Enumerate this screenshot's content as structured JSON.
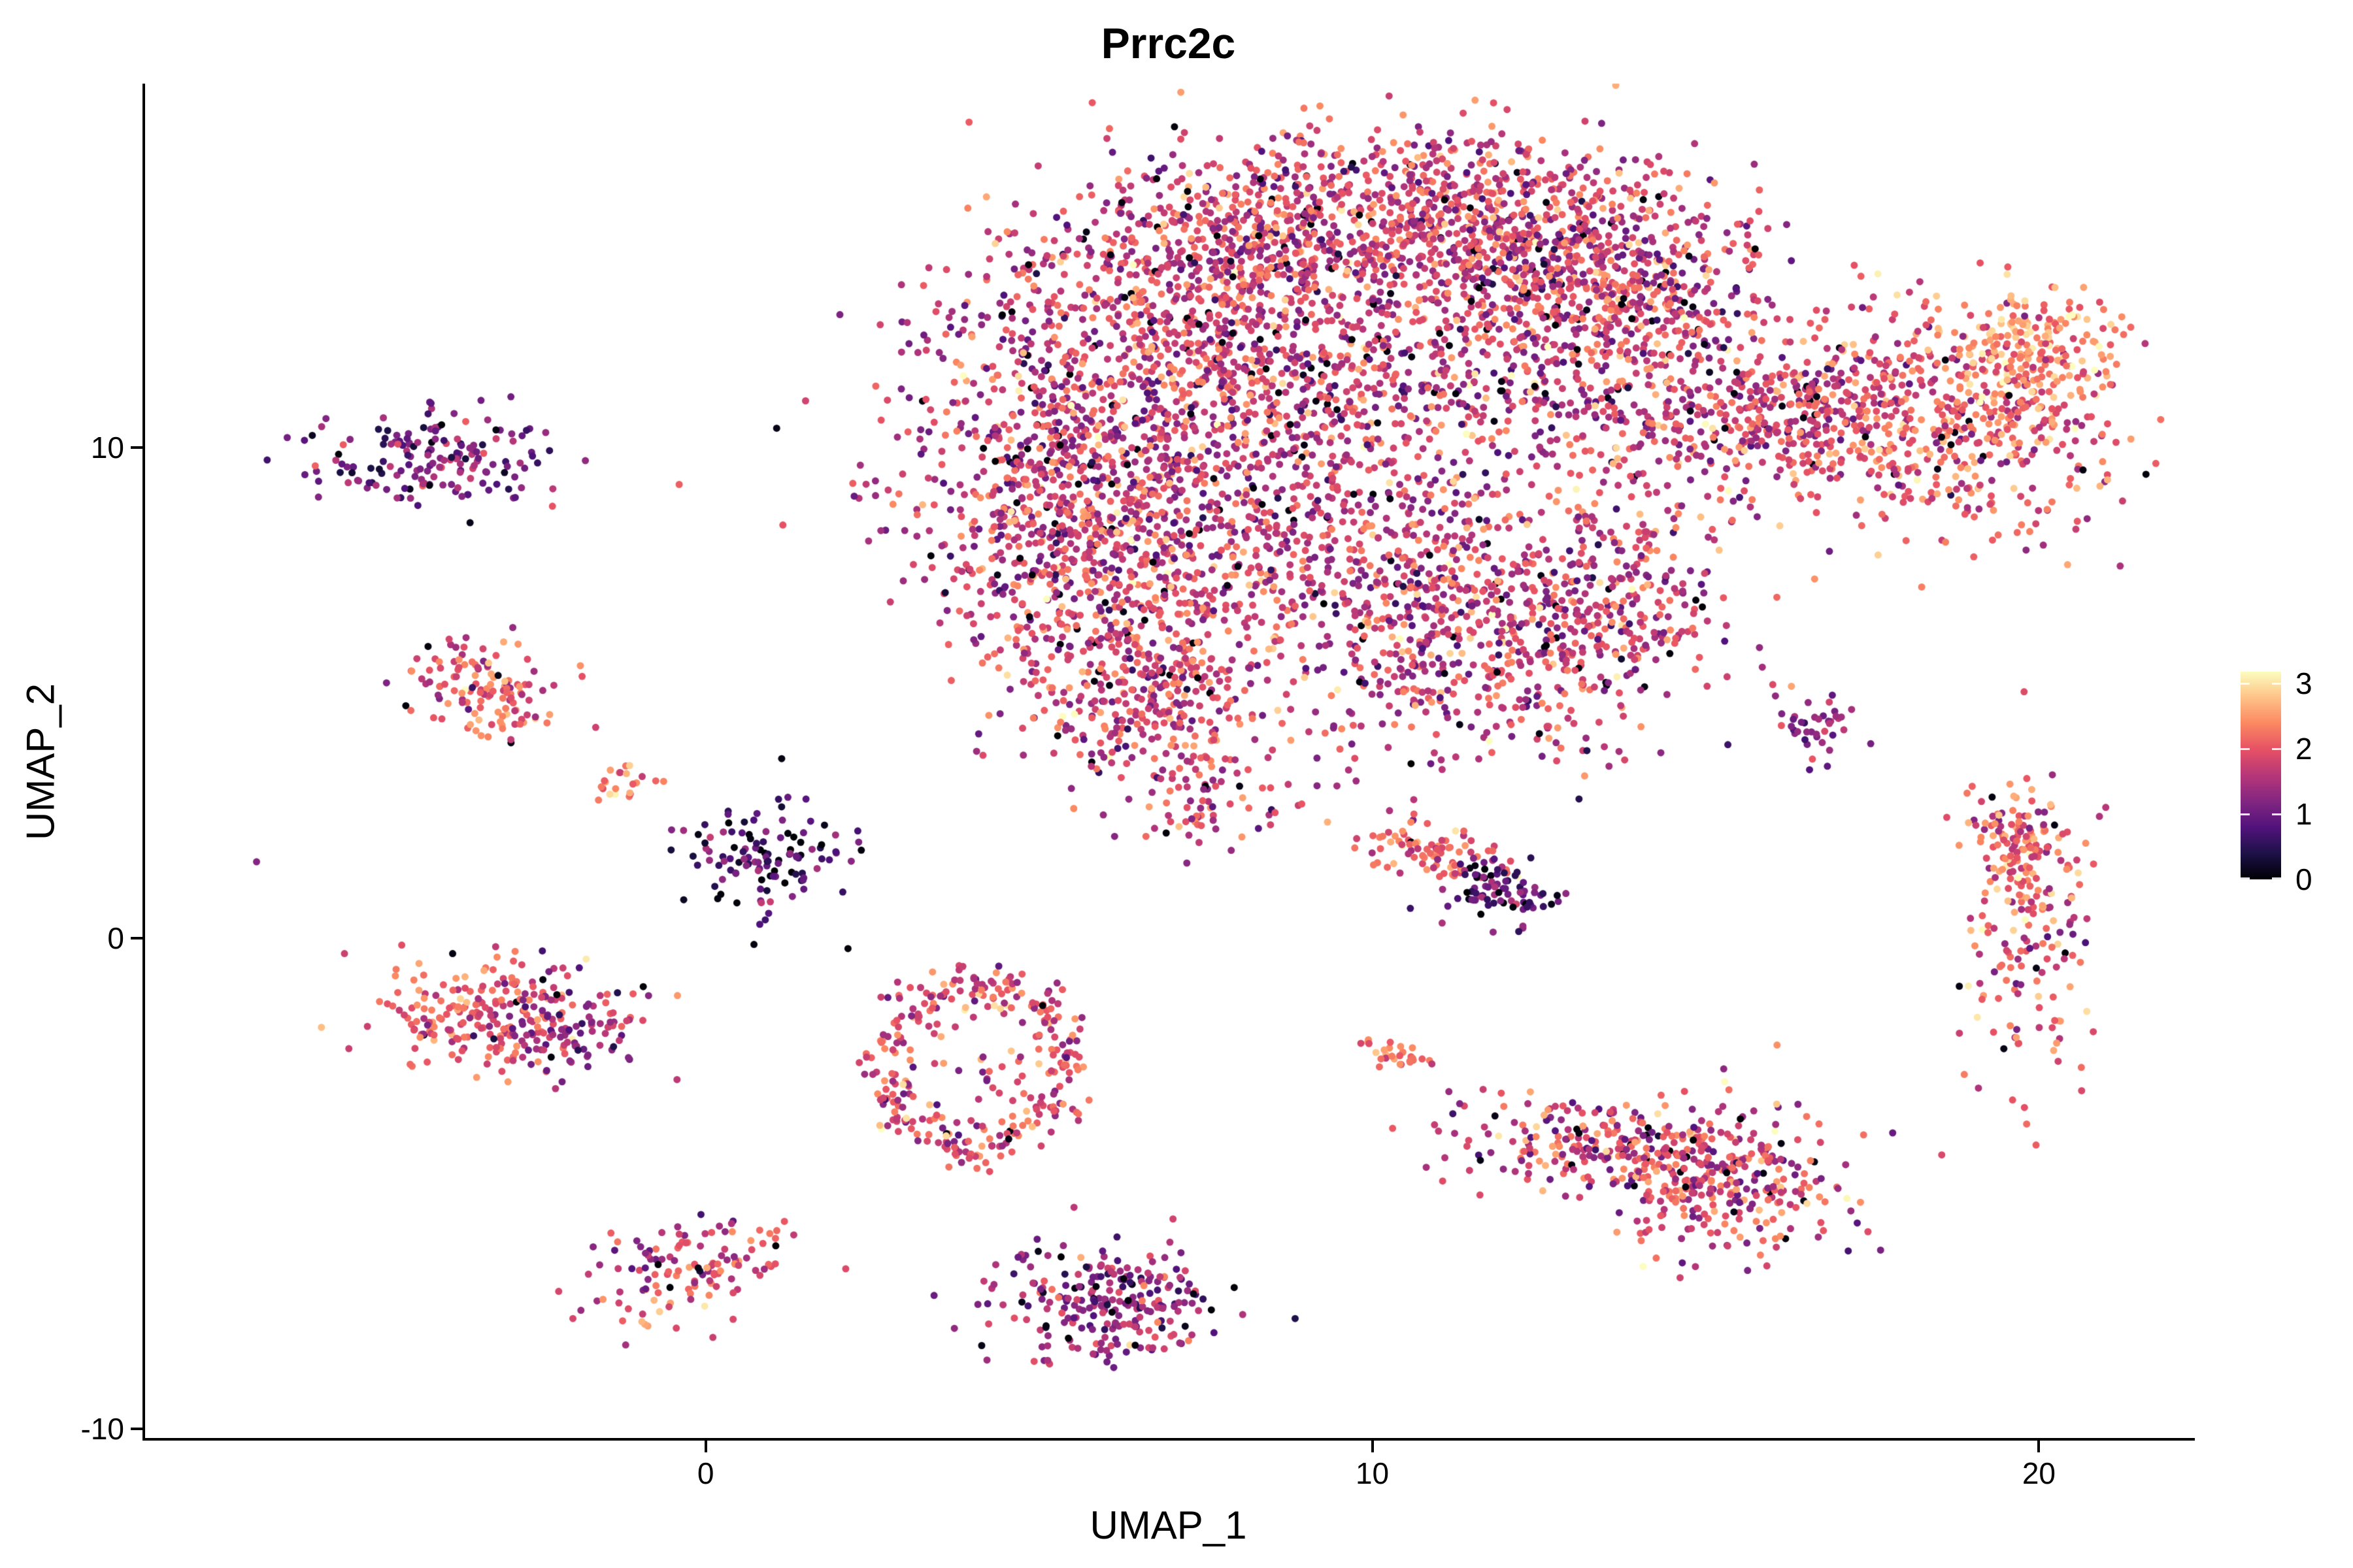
{
  "chart_data": {
    "type": "scatter",
    "title": "Prrc2c",
    "xlabel": "UMAP_1",
    "ylabel": "UMAP_2",
    "x_ticks": [
      0,
      10,
      20
    ],
    "y_ticks": [
      -10,
      0,
      10
    ],
    "xlim": [
      -8.43,
      22.31
    ],
    "ylim": [
      -10.21,
      17.39
    ],
    "grid": false,
    "point_radius_px": 5.5,
    "colorbar": {
      "position": "right",
      "ticks": [
        0,
        1,
        2,
        3
      ],
      "value_max": 3.18,
      "colormap": "magma",
      "stops": [
        "#000004",
        "#1d1147",
        "#51127c",
        "#822681",
        "#b63679",
        "#e65164",
        "#fb8861",
        "#fec287",
        "#fcfdbf"
      ]
    },
    "clusters": [
      {
        "cx": 7.6,
        "cy": 13.6,
        "rx": 1.25,
        "ry": 1.05,
        "rot": 0,
        "n": 340,
        "vm": 1.8,
        "vs": 0.5,
        "z": 0.04
      },
      {
        "cx": 9.3,
        "cy": 14.7,
        "rx": 1.5,
        "ry": 0.85,
        "rot": 0,
        "n": 400,
        "vm": 1.8,
        "vs": 0.5,
        "z": 0.04
      },
      {
        "cx": 11.5,
        "cy": 14.6,
        "rx": 1.4,
        "ry": 0.95,
        "rot": 0,
        "n": 400,
        "vm": 1.75,
        "vs": 0.55,
        "z": 0.04
      },
      {
        "cx": 13.2,
        "cy": 13.7,
        "rx": 1.15,
        "ry": 1.15,
        "rot": 0,
        "n": 330,
        "vm": 1.8,
        "vs": 0.55,
        "z": 0.05
      },
      {
        "cx": 6.0,
        "cy": 11.2,
        "rx": 1.55,
        "ry": 1.8,
        "rot": 0,
        "n": 680,
        "vm": 1.7,
        "vs": 0.55,
        "z": 0.04
      },
      {
        "cx": 5.2,
        "cy": 8.7,
        "rx": 1.15,
        "ry": 1.4,
        "rot": 0,
        "n": 430,
        "vm": 1.7,
        "vs": 0.55,
        "z": 0.04
      },
      {
        "cx": 6.3,
        "cy": 6.3,
        "rx": 1.15,
        "ry": 1.3,
        "rot": 0,
        "n": 380,
        "vm": 1.75,
        "vs": 0.5,
        "z": 0.03
      },
      {
        "cx": 6.7,
        "cy": 4.6,
        "rx": 0.85,
        "ry": 0.85,
        "rot": 0,
        "n": 190,
        "vm": 1.8,
        "vs": 0.5,
        "z": 0.02
      },
      {
        "cx": 7.6,
        "cy": 2.9,
        "rx": 0.9,
        "ry": 0.55,
        "rot": 0,
        "n": 70,
        "vm": 1.7,
        "vs": 0.5,
        "z": 0.04
      },
      {
        "cx": 8.9,
        "cy": 11.9,
        "rx": 1.5,
        "ry": 1.15,
        "rot": 0,
        "n": 300,
        "vm": 1.7,
        "vs": 0.55,
        "z": 0.05
      },
      {
        "cx": 8.3,
        "cy": 9.4,
        "rx": 1.4,
        "ry": 1.9,
        "rot": 0,
        "n": 430,
        "vm": 1.7,
        "vs": 0.55,
        "z": 0.04
      },
      {
        "cx": 12.6,
        "cy": 11.9,
        "rx": 1.55,
        "ry": 1.5,
        "rot": 0,
        "n": 520,
        "vm": 1.75,
        "vs": 0.55,
        "z": 0.05
      },
      {
        "cx": 13.9,
        "cy": 13.1,
        "rx": 1.0,
        "ry": 0.95,
        "rot": 0,
        "n": 200,
        "vm": 1.8,
        "vs": 0.5,
        "z": 0.03
      },
      {
        "cx": 10.6,
        "cy": 6.4,
        "rx": 1.25,
        "ry": 1.45,
        "rot": 0,
        "n": 330,
        "vm": 1.7,
        "vs": 0.55,
        "z": 0.04
      },
      {
        "cx": 12.3,
        "cy": 5.9,
        "rx": 1.25,
        "ry": 1.15,
        "rot": 0,
        "n": 290,
        "vm": 1.7,
        "vs": 0.55,
        "z": 0.04
      },
      {
        "cx": 13.6,
        "cy": 7.4,
        "rx": 1.0,
        "ry": 1.2,
        "rot": 0,
        "n": 240,
        "vm": 1.75,
        "vs": 0.5,
        "z": 0.03
      },
      {
        "cx": 10.2,
        "cy": 8.6,
        "rx": 1.8,
        "ry": 1.1,
        "rot": 0,
        "n": 150,
        "vm": 1.65,
        "vs": 0.55,
        "z": 0.05
      },
      {
        "cx": 15.3,
        "cy": 10.5,
        "rx": 1.1,
        "ry": 0.8,
        "rot": 0,
        "n": 140,
        "vm": 1.7,
        "vs": 0.5,
        "z": 0.04
      },
      {
        "cx": 16.5,
        "cy": 10.9,
        "rx": 0.8,
        "ry": 0.7,
        "rot": 0,
        "n": 120,
        "vm": 1.8,
        "vs": 0.5,
        "z": 0.03
      },
      {
        "cx": 18.2,
        "cy": 10.5,
        "rx": 1.5,
        "ry": 1.05,
        "rot": -20,
        "n": 540,
        "vm": 2.0,
        "vs": 0.5,
        "z": 0.02
      },
      {
        "cx": 19.8,
        "cy": 12.2,
        "rx": 0.65,
        "ry": 0.55,
        "rot": 0,
        "n": 150,
        "vm": 2.5,
        "vs": 0.35,
        "z": 0
      },
      {
        "cx": 19.85,
        "cy": 11.2,
        "rx": 0.5,
        "ry": 0.7,
        "rot": 0,
        "n": 90,
        "vm": 2.1,
        "vs": 0.45,
        "z": 0.01
      },
      {
        "cx": -4.15,
        "cy": 9.8,
        "rx": 1.0,
        "ry": 0.5,
        "rot": 0,
        "n": 170,
        "vm": 1.15,
        "vs": 0.45,
        "z": 0.06
      },
      {
        "cx": -3.4,
        "cy": 5.2,
        "rx": 0.6,
        "ry": 0.45,
        "rot": 0,
        "n": 105,
        "vm": 1.95,
        "vs": 0.45,
        "z": 0.02
      },
      {
        "cx": -2.95,
        "cy": 4.55,
        "rx": 0.35,
        "ry": 0.18,
        "rot": -30,
        "n": 22,
        "vm": 2.2,
        "vs": 0.35,
        "z": 0
      },
      {
        "cx": -1.28,
        "cy": 3.2,
        "rx": 0.28,
        "ry": 0.2,
        "rot": -35,
        "n": 22,
        "vm": 2.3,
        "vs": 0.35,
        "z": 0
      },
      {
        "cx": -6.72,
        "cy": 1.58,
        "rx": 0.02,
        "ry": 0.02,
        "rot": 0,
        "n": 1,
        "vm": 1.2,
        "vs": 0,
        "z": 0
      },
      {
        "cx": 1.0,
        "cy": 1.6,
        "rx": 0.6,
        "ry": 0.55,
        "rot": 0,
        "n": 120,
        "vm": 0.8,
        "vs": 0.45,
        "z": 0.12
      },
      {
        "cx": -3.5,
        "cy": -1.5,
        "rx": 0.75,
        "ry": 0.6,
        "rot": 0,
        "n": 180,
        "vm": 2.15,
        "vs": 0.4,
        "z": 0.01
      },
      {
        "cx": -2.2,
        "cy": -1.7,
        "rx": 0.65,
        "ry": 0.5,
        "rot": 0,
        "n": 120,
        "vm": 1.3,
        "vs": 0.4,
        "z": 0.03
      },
      {
        "cx": -1.77,
        "cy": -0.45,
        "rx": 0.02,
        "ry": 0.02,
        "rot": 0,
        "n": 1,
        "vm": 3.05,
        "vs": 0,
        "z": 0
      },
      {
        "type": "ring",
        "cx": 4.1,
        "cy": -2.6,
        "rx": 1.35,
        "ry": 1.6,
        "rw": 0.18,
        "rot": 0,
        "n": 300,
        "vm": 1.9,
        "vs": 0.5,
        "z": 0.02
      },
      {
        "cx": 4.1,
        "cy": -2.6,
        "rx": 0.55,
        "ry": 0.5,
        "rot": 0,
        "n": 22,
        "vm": 1.7,
        "vs": 0.6,
        "z": 0.05
      },
      {
        "cx": 10.9,
        "cy": 1.75,
        "rx": 0.55,
        "ry": 0.3,
        "rot": -18,
        "n": 85,
        "vm": 2.15,
        "vs": 0.4,
        "z": 0.02
      },
      {
        "cx": 11.9,
        "cy": 0.95,
        "rx": 0.55,
        "ry": 0.35,
        "rot": -18,
        "n": 85,
        "vm": 0.95,
        "vs": 0.5,
        "z": 0.1
      },
      {
        "cx": 10.4,
        "cy": -2.35,
        "rx": 0.33,
        "ry": 0.15,
        "rot": -25,
        "n": 28,
        "vm": 2.2,
        "vs": 0.3,
        "z": 0
      },
      {
        "cx": 13.3,
        "cy": -4.2,
        "rx": 1.1,
        "ry": 0.45,
        "rot": -8,
        "n": 190,
        "vm": 1.8,
        "vs": 0.55,
        "z": 0.04
      },
      {
        "cx": 15.2,
        "cy": -4.9,
        "rx": 0.95,
        "ry": 0.8,
        "rot": 0,
        "n": 330,
        "vm": 1.85,
        "vs": 0.55,
        "z": 0.04
      },
      {
        "cx": 16.7,
        "cy": 4.35,
        "rx": 0.38,
        "ry": 0.3,
        "rot": -40,
        "n": 40,
        "vm": 1.15,
        "vs": 0.45,
        "z": 0.05
      },
      {
        "cx": 19.85,
        "cy": 0.5,
        "rx": 0.45,
        "ry": 1.55,
        "rot": 0,
        "n": 200,
        "vm": 2.05,
        "vs": 0.5,
        "z": 0.02
      },
      {
        "cx": 19.55,
        "cy": 2.2,
        "rx": 0.35,
        "ry": 0.4,
        "rot": 0,
        "n": 60,
        "vm": 2.1,
        "vs": 0.45,
        "z": 0.02
      },
      {
        "cx": -0.25,
        "cy": -6.8,
        "rx": 0.75,
        "ry": 0.5,
        "rot": 25,
        "n": 130,
        "vm": 1.85,
        "vs": 0.5,
        "z": 0.03
      },
      {
        "cx": 6.1,
        "cy": -7.4,
        "rx": 0.85,
        "ry": 0.6,
        "rot": 0,
        "n": 250,
        "vm": 1.4,
        "vs": 0.5,
        "z": 0.05
      }
    ]
  }
}
